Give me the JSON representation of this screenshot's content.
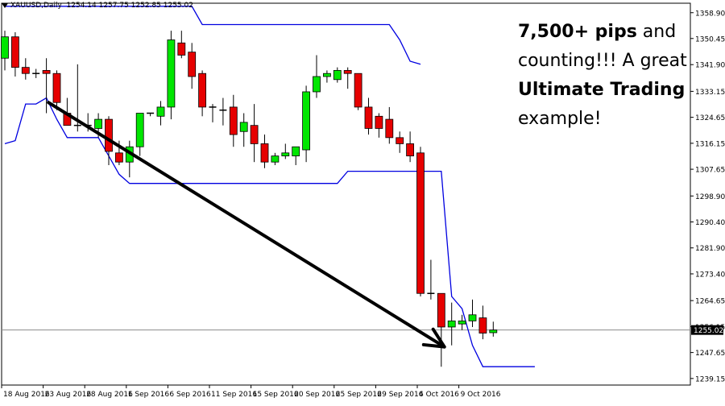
{
  "header": {
    "symbol": "XAUUSD,Daily",
    "ohlc": "1254.14 1257.75 1252.85 1255.02"
  },
  "annotation": {
    "bold1": "7,500+ pips",
    "t1": " and counting!!! A great ",
    "bold2": "Ultimate Trading",
    "t2": " example!"
  },
  "chart_data": {
    "type": "candlestick",
    "ylim": [
      1237.0,
      1362.0
    ],
    "y_ticks": [
      "1358.90",
      "1350.45",
      "1341.90",
      "1333.15",
      "1324.65",
      "1316.15",
      "1307.65",
      "1298.90",
      "1290.40",
      "1281.90",
      "1273.40",
      "1264.65",
      "1256.15",
      "1247.65",
      "1239.15"
    ],
    "current_price": "1255.02",
    "x_labels": [
      "18 Aug 2016",
      "23 Aug 2016",
      "28 Aug 2016",
      "1 Sep 2016",
      "6 Sep 2016",
      "11 Sep 2016",
      "15 Sep 2016",
      "20 Sep 2016",
      "25 Sep 2016",
      "29 Sep 2016",
      "4 Oct 2016",
      "9 Oct 2016"
    ],
    "candles": [
      {
        "o": 1344.0,
        "h": 1353.0,
        "l": 1340.0,
        "c": 1351.0
      },
      {
        "o": 1351.0,
        "h": 1352.5,
        "l": 1338.0,
        "c": 1341.0
      },
      {
        "o": 1341.0,
        "h": 1344.0,
        "l": 1337.0,
        "c": 1339.0
      },
      {
        "o": 1339.0,
        "h": 1340.5,
        "l": 1337.5,
        "c": 1339.0
      },
      {
        "o": 1340.0,
        "h": 1344.0,
        "l": 1326.0,
        "c": 1339.0
      },
      {
        "o": 1339.0,
        "h": 1340.0,
        "l": 1327.0,
        "c": 1329.5
      },
      {
        "o": 1326.0,
        "h": 1331.0,
        "l": 1322.0,
        "c": 1322.0
      },
      {
        "o": 1322.0,
        "h": 1342.0,
        "l": 1320.0,
        "c": 1322.0
      },
      {
        "o": 1322.0,
        "h": 1326.0,
        "l": 1320.0,
        "c": 1322.0
      },
      {
        "o": 1321.0,
        "h": 1326.0,
        "l": 1318.0,
        "c": 1324.0
      },
      {
        "o": 1324.0,
        "h": 1325.0,
        "l": 1309.0,
        "c": 1313.5
      },
      {
        "o": 1313.0,
        "h": 1317.0,
        "l": 1309.0,
        "c": 1310.0
      },
      {
        "o": 1310.0,
        "h": 1317.0,
        "l": 1305.0,
        "c": 1315.0
      },
      {
        "o": 1315.0,
        "h": 1326.0,
        "l": 1312.0,
        "c": 1326.0
      },
      {
        "o": 1326.0,
        "h": 1326.0,
        "l": 1325.0,
        "c": 1326.0
      },
      {
        "o": 1325.0,
        "h": 1330.0,
        "l": 1322.0,
        "c": 1328.0
      },
      {
        "o": 1328.0,
        "h": 1353.0,
        "l": 1324.0,
        "c": 1350.0
      },
      {
        "o": 1349.0,
        "h": 1353.0,
        "l": 1344.0,
        "c": 1345.0
      },
      {
        "o": 1346.0,
        "h": 1349.0,
        "l": 1334.0,
        "c": 1338.0
      },
      {
        "o": 1339.0,
        "h": 1340.0,
        "l": 1325.0,
        "c": 1328.0
      },
      {
        "o": 1328.0,
        "h": 1329.0,
        "l": 1323.0,
        "c": 1328.0
      },
      {
        "o": 1327.0,
        "h": 1331.0,
        "l": 1322.0,
        "c": 1327.0
      },
      {
        "o": 1328.0,
        "h": 1332.0,
        "l": 1315.0,
        "c": 1319.0
      },
      {
        "o": 1320.0,
        "h": 1326.0,
        "l": 1315.0,
        "c": 1323.0
      },
      {
        "o": 1322.0,
        "h": 1329.0,
        "l": 1310.0,
        "c": 1316.0
      },
      {
        "o": 1316.0,
        "h": 1319.0,
        "l": 1308.0,
        "c": 1310.0
      },
      {
        "o": 1310.0,
        "h": 1313.0,
        "l": 1309.0,
        "c": 1312.0
      },
      {
        "o": 1312.0,
        "h": 1316.0,
        "l": 1311.0,
        "c": 1313.0
      },
      {
        "o": 1312.0,
        "h": 1315.0,
        "l": 1309.0,
        "c": 1315.0
      },
      {
        "o": 1314.0,
        "h": 1335.0,
        "l": 1310.0,
        "c": 1333.0
      },
      {
        "o": 1333.0,
        "h": 1345.0,
        "l": 1331.0,
        "c": 1338.0
      },
      {
        "o": 1338.0,
        "h": 1340.0,
        "l": 1336.0,
        "c": 1339.0
      },
      {
        "o": 1337.0,
        "h": 1341.0,
        "l": 1336.0,
        "c": 1340.0
      },
      {
        "o": 1340.0,
        "h": 1341.0,
        "l": 1334.0,
        "c": 1339.0
      },
      {
        "o": 1339.0,
        "h": 1339.0,
        "l": 1327.0,
        "c": 1328.0
      },
      {
        "o": 1328.0,
        "h": 1331.0,
        "l": 1319.0,
        "c": 1321.0
      },
      {
        "o": 1325.0,
        "h": 1326.0,
        "l": 1318.0,
        "c": 1321.0
      },
      {
        "o": 1324.0,
        "h": 1328.0,
        "l": 1316.0,
        "c": 1318.0
      },
      {
        "o": 1318.0,
        "h": 1320.0,
        "l": 1313.0,
        "c": 1316.0
      },
      {
        "o": 1316.0,
        "h": 1320.0,
        "l": 1310.0,
        "c": 1312.0
      },
      {
        "o": 1313.0,
        "h": 1315.0,
        "l": 1266.0,
        "c": 1267.0
      },
      {
        "o": 1267.0,
        "h": 1278.0,
        "l": 1265.0,
        "c": 1267.0
      },
      {
        "o": 1267.0,
        "h": 1267.0,
        "l": 1243.0,
        "c": 1256.0
      },
      {
        "o": 1256.0,
        "h": 1264.0,
        "l": 1250.0,
        "c": 1258.0
      },
      {
        "o": 1257.0,
        "h": 1260.0,
        "l": 1255.0,
        "c": 1258.0
      },
      {
        "o": 1258.0,
        "h": 1265.0,
        "l": 1256.0,
        "c": 1260.0
      },
      {
        "o": 1259.0,
        "h": 1263.0,
        "l": 1252.0,
        "c": 1254.0
      },
      {
        "o": 1254.14,
        "h": 1257.75,
        "l": 1252.85,
        "c": 1255.02
      }
    ],
    "channel_upper": [
      1361,
      1361,
      1361,
      1361,
      1361,
      1361,
      1361,
      1361,
      1361,
      1361,
      1361,
      1361,
      1361,
      1361,
      1361,
      1361,
      1361,
      1361,
      1361,
      1355,
      1355,
      1355,
      1355,
      1355,
      1355,
      1355,
      1355,
      1355,
      1355,
      1355,
      1355,
      1355,
      1355,
      1355,
      1355,
      1355,
      1355,
      1355,
      1350,
      1343,
      1342
    ],
    "channel_lower": [
      1316,
      1317,
      1329,
      1329,
      1331,
      1324,
      1318,
      1318,
      1318,
      1318,
      1312,
      1306,
      1303,
      1303,
      1303,
      1303,
      1303,
      1303,
      1303,
      1303,
      1303,
      1303,
      1303,
      1303,
      1303,
      1303,
      1303,
      1303,
      1303,
      1303,
      1303,
      1303,
      1303,
      1307,
      1307,
      1307,
      1307,
      1307,
      1307,
      1307,
      1307,
      1307,
      1307,
      1266,
      1262,
      1250,
      1243,
      1243,
      1243,
      1243,
      1243,
      1243
    ],
    "arrow": {
      "from_index": 4.2,
      "from_value": 1329.5,
      "to_index": 42.3,
      "to_value": 1249.5
    }
  }
}
